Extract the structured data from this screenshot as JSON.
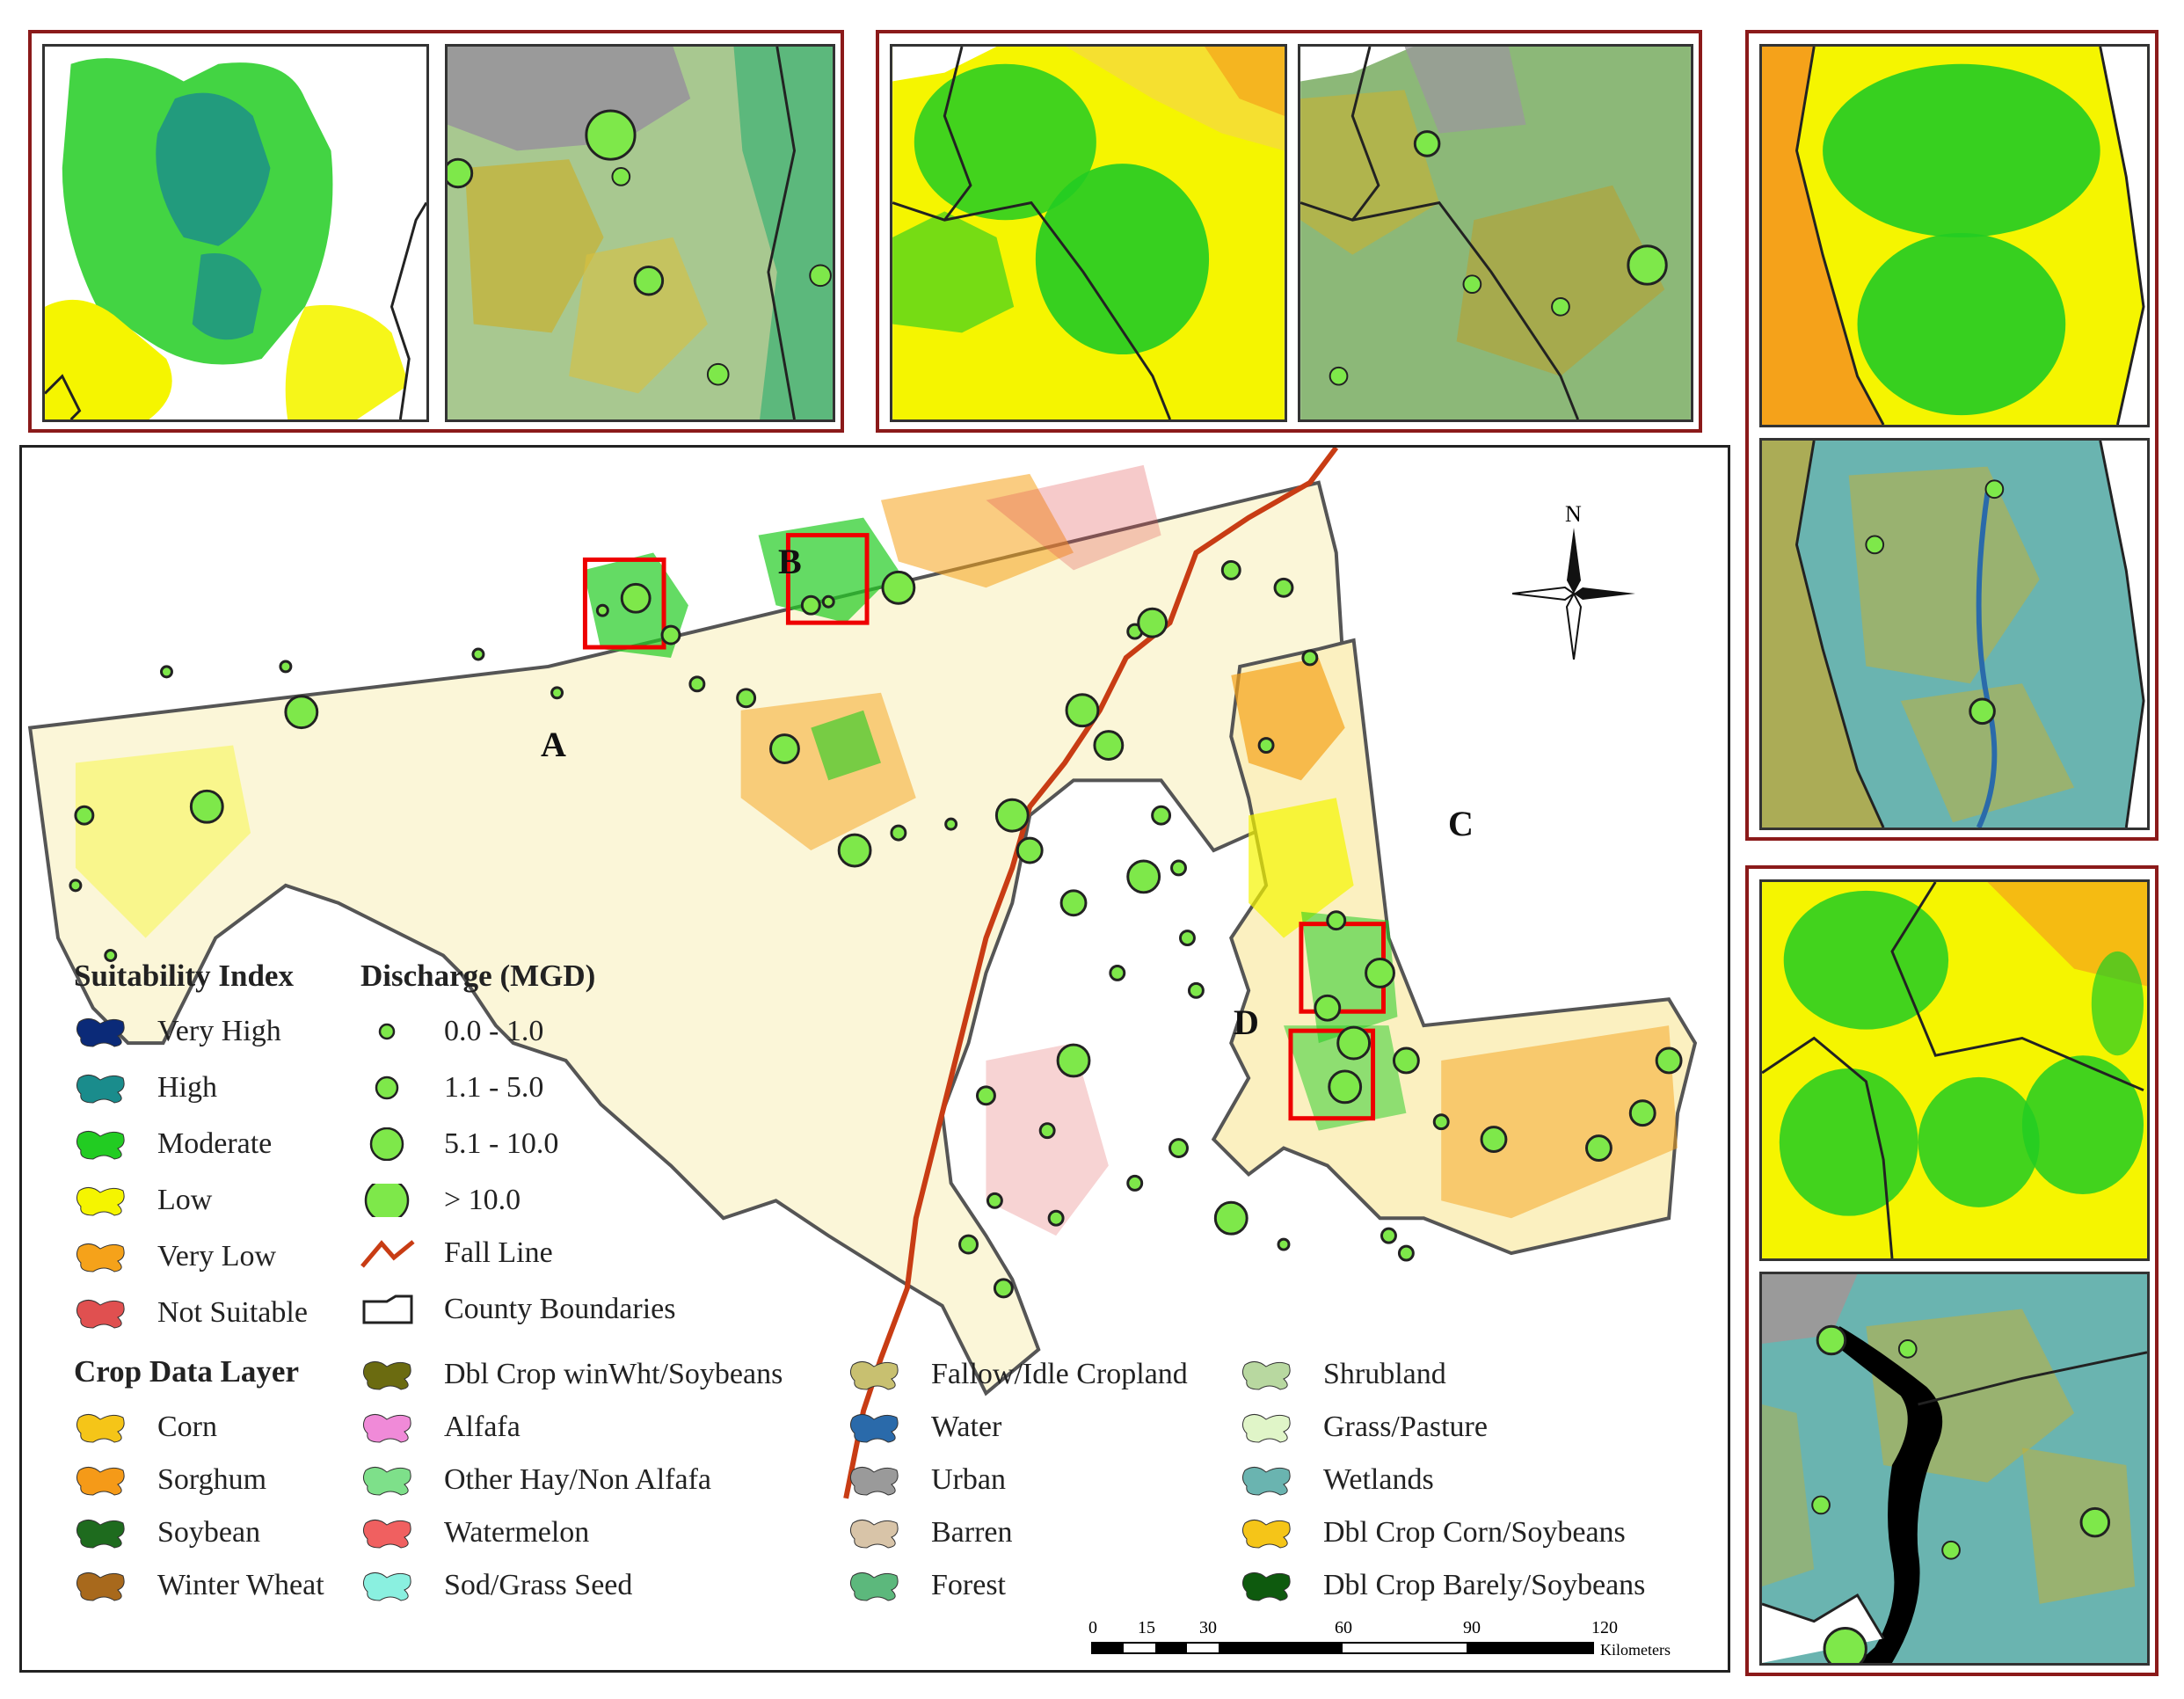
{
  "map_labels": {
    "a": "A",
    "b": "B",
    "c": "C",
    "d": "D"
  },
  "north": {
    "label": "N"
  },
  "legend": {
    "suitability_title": "Suitability Index",
    "suitability": [
      {
        "label": "Very High",
        "color": "#0b2a78"
      },
      {
        "label": "High",
        "color": "#1a8c8c"
      },
      {
        "label": "Moderate",
        "color": "#22cc22"
      },
      {
        "label": "Low",
        "color": "#f5f500"
      },
      {
        "label": "Very Low",
        "color": "#f5a21a"
      },
      {
        "label": "Not Suitable",
        "color": "#e05050"
      }
    ],
    "discharge_title": "Discharge (MGD)",
    "discharge": [
      {
        "label": "0.0 - 1.0"
      },
      {
        "label": "1.1 - 5.0"
      },
      {
        "label": "5.1 - 10.0"
      },
      {
        "label": "> 10.0"
      }
    ],
    "fall_line": "Fall Line",
    "county_boundaries": "County Boundaries",
    "crop_title": "Crop Data Layer",
    "crops": [
      {
        "label": "Corn",
        "color": "#f5c518"
      },
      {
        "label": "Sorghum",
        "color": "#f59a18"
      },
      {
        "label": "Soybean",
        "color": "#1e6b1e"
      },
      {
        "label": "Winter Wheat",
        "color": "#a8691c"
      },
      {
        "label": "Dbl Crop winWht/Soybeans",
        "color": "#6b6b10"
      },
      {
        "label": "Alfafa",
        "color": "#f08ad8"
      },
      {
        "label": "Other Hay/Non Alfafa",
        "color": "#7ee08a"
      },
      {
        "label": "Watermelon",
        "color": "#f06060"
      },
      {
        "label": "Sod/Grass Seed",
        "color": "#8af0e0"
      },
      {
        "label": "Fallow/Idle Cropland",
        "color": "#c8c070"
      },
      {
        "label": "Water",
        "color": "#2a6aaa"
      },
      {
        "label": "Urban",
        "color": "#9a9a9a"
      },
      {
        "label": "Barren",
        "color": "#d8c4a8"
      },
      {
        "label": "Forest",
        "color": "#5cb87c"
      },
      {
        "label": "Shrubland",
        "color": "#b8d8a0"
      },
      {
        "label": "Grass/Pasture",
        "color": "#e0f5c8"
      },
      {
        "label": "Wetlands",
        "color": "#6ab4b0"
      },
      {
        "label": "Dbl Crop Corn/Soybeans",
        "color": "#f5c518"
      },
      {
        "label": "Dbl Crop Barely/Soybeans",
        "color": "#0e5a0e"
      }
    ]
  },
  "scale": {
    "ticks": [
      "0",
      "15",
      "30",
      "60",
      "90",
      "120"
    ],
    "unit": "Kilometers"
  }
}
